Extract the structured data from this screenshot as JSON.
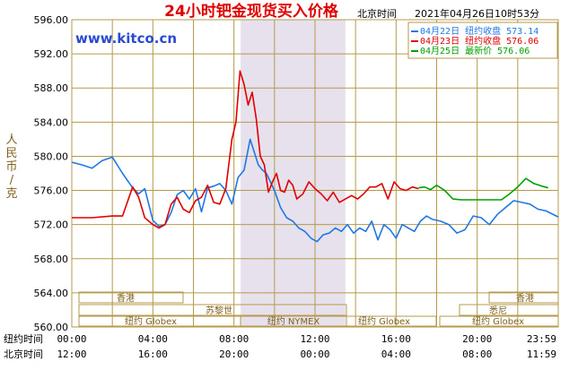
{
  "header": {
    "title": "24小时钯金现货买入价格",
    "timezone_label": "北京时间",
    "timestamp": "2021年04月26日10时53分"
  },
  "watermark": "www.kitco.cn",
  "y_axis_label": "人民币/克",
  "legend": [
    {
      "label": "04月22日 纽约收盘 573.14",
      "color": "#1e78e6"
    },
    {
      "label": "04月23日 纽约收盘 576.06",
      "color": "#e00000"
    },
    {
      "label": "04月25日 最新价 576.06",
      "color": "#00a000"
    }
  ],
  "rows": {
    "ny_label": "纽约时间",
    "bj_label": "北京时间",
    "ny_ticks": [
      "00:00",
      "04:00",
      "08:00",
      "12:00",
      "16:00",
      "20:00",
      "23:59"
    ],
    "bj_ticks": [
      "12:00",
      "16:00",
      "20:00",
      "00:00",
      "04:00",
      "08:00",
      "11:59"
    ]
  },
  "sessions": {
    "hk1": "香港",
    "london": "苏黎世",
    "ny_globex_1": "纽约 Globex",
    "nymex": "纽约 NYMEX",
    "ny_globex_2": "纽约 Globex",
    "hk2": "香港",
    "sydney": "悉尼",
    "ny_globex_3": "纽约 Globex"
  },
  "colors": {
    "grid": "#b59a4a",
    "axis_text": "#000000",
    "title": "#e00000",
    "watermark": "#2a4ad0",
    "nymex_band": "#e6e1ec",
    "y_label": "#806020"
  },
  "chart_data": {
    "type": "line",
    "title": "24小时钯金现货买入价格",
    "xlabel": "",
    "ylabel": "人民币/克",
    "x_unit": "hours (NY time)",
    "xlim": [
      0,
      24
    ],
    "ylim": [
      560,
      596
    ],
    "y_ticks": [
      "560.00",
      "564.00",
      "568.00",
      "572.00",
      "576.00",
      "580.00",
      "584.00",
      "588.00",
      "592.00",
      "596.00"
    ],
    "grid": true,
    "legend_position": "top-right",
    "series": [
      {
        "name": "04月22日 纽约收盘 573.14",
        "color": "#1e78e6",
        "x": [
          0,
          0.5,
          1,
          1.5,
          2,
          2.5,
          3,
          3.3,
          3.6,
          4,
          4.3,
          4.6,
          4.9,
          5.2,
          5.5,
          5.8,
          6.1,
          6.4,
          6.7,
          7,
          7.3,
          7.6,
          7.9,
          8.2,
          8.5,
          8.8,
          9,
          9.2,
          9.4,
          9.6,
          9.8,
          10,
          10.3,
          10.6,
          10.9,
          11.2,
          11.5,
          11.8,
          12.1,
          12.4,
          12.7,
          13,
          13.3,
          13.6,
          13.9,
          14.2,
          14.5,
          14.8,
          15.1,
          15.4,
          15.7,
          16,
          16.3,
          16.6,
          16.9,
          17.2,
          17.5,
          17.8,
          18.2,
          18.6,
          19,
          19.4,
          19.8,
          20.2,
          20.6,
          21,
          21.4,
          21.8,
          22.2,
          22.6,
          23,
          23.4,
          23.99
        ],
        "y": [
          579.3,
          579.0,
          578.6,
          579.5,
          579.9,
          578.0,
          576.3,
          575.6,
          576.2,
          572.5,
          571.8,
          572.0,
          573.4,
          575.5,
          576.0,
          575.0,
          576.2,
          573.5,
          576.3,
          576.5,
          576.8,
          576.0,
          574.4,
          577.5,
          578.4,
          582.0,
          580.5,
          579.0,
          578.4,
          578.0,
          577.0,
          576.0,
          574.0,
          572.8,
          572.4,
          571.6,
          571.2,
          570.4,
          570.0,
          570.8,
          571.0,
          571.6,
          571.2,
          572.0,
          571.0,
          571.6,
          571.2,
          572.4,
          570.2,
          572.0,
          571.4,
          570.4,
          572.0,
          571.6,
          571.2,
          572.4,
          573.0,
          572.6,
          572.4,
          572.0,
          571.0,
          571.4,
          573.0,
          572.8,
          572.0,
          573.2,
          574.0,
          574.8,
          574.6,
          574.4,
          573.8,
          573.6,
          572.9
        ]
      },
      {
        "name": "04月23日 纽约收盘 576.06",
        "color": "#e00000",
        "x": [
          0,
          1,
          2,
          2.5,
          3,
          3.3,
          3.6,
          4,
          4.3,
          4.6,
          4.9,
          5.2,
          5.5,
          5.8,
          6.1,
          6.4,
          6.7,
          7,
          7.3,
          7.6,
          7.9,
          8.1,
          8.3,
          8.5,
          8.7,
          8.9,
          9.1,
          9.3,
          9.5,
          9.7,
          9.9,
          10.1,
          10.3,
          10.5,
          10.7,
          10.9,
          11.1,
          11.4,
          11.7,
          12,
          12.3,
          12.6,
          12.9,
          13.2,
          13.5,
          13.8,
          14.1,
          14.4,
          14.7,
          15,
          15.3,
          15.6,
          15.9,
          16.2,
          16.5,
          16.8,
          17.1
        ],
        "y": [
          572.8,
          572.8,
          573.0,
          573.0,
          576.4,
          575.2,
          572.8,
          572.0,
          571.6,
          572.0,
          574.4,
          575.2,
          573.8,
          573.4,
          574.8,
          575.2,
          576.6,
          574.6,
          574.4,
          576.2,
          582.0,
          584.0,
          590.0,
          588.4,
          586.0,
          587.5,
          584.4,
          580.0,
          579.0,
          575.8,
          577.0,
          578.0,
          576.0,
          575.8,
          577.2,
          576.6,
          575.0,
          575.6,
          577.0,
          576.2,
          575.6,
          574.8,
          575.8,
          574.6,
          575.0,
          575.4,
          575.0,
          575.6,
          576.4,
          576.4,
          576.8,
          575.0,
          577.0,
          576.2,
          576.0,
          576.4,
          576.2
        ]
      },
      {
        "name": "04月25日 最新价 576.06",
        "color": "#00a000",
        "x": [
          17.1,
          17.4,
          17.7,
          18.0,
          18.4,
          18.8,
          19.2,
          19.6,
          20.0,
          20.4,
          20.8,
          21.2,
          21.6,
          22.0,
          22.4,
          22.8,
          23.2,
          23.5
        ],
        "y": [
          576.3,
          576.4,
          576.1,
          576.6,
          576.0,
          575.0,
          574.9,
          574.9,
          574.9,
          574.9,
          574.9,
          574.9,
          575.6,
          576.4,
          577.4,
          576.8,
          576.5,
          576.3
        ]
      }
    ]
  }
}
